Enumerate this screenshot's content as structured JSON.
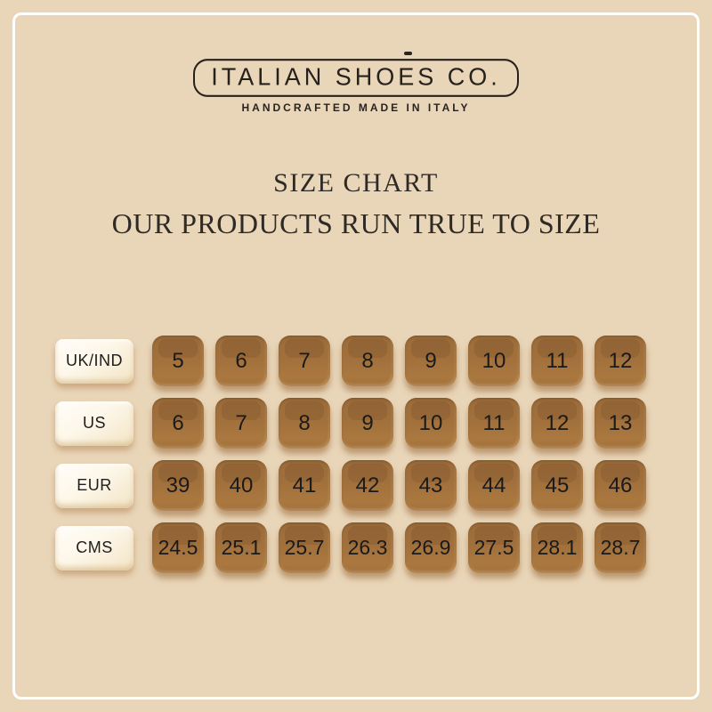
{
  "brand": {
    "name": "ITALIAN SHOES CO.",
    "tagline": "HANDCRAFTED MADE IN ITALY"
  },
  "heading": {
    "title": "SIZE CHART",
    "subtitle": "OUR PRODUCTS RUN TRUE TO SIZE"
  },
  "chart_data": {
    "type": "table",
    "title": "SIZE CHART",
    "row_headers": [
      "UK/IND",
      "US",
      "EUR",
      "CMS"
    ],
    "rows": [
      {
        "label": "UK/IND",
        "values": [
          "5",
          "6",
          "7",
          "8",
          "9",
          "10",
          "11",
          "12"
        ]
      },
      {
        "label": "US",
        "values": [
          "6",
          "7",
          "8",
          "9",
          "10",
          "11",
          "12",
          "13"
        ]
      },
      {
        "label": "EUR",
        "values": [
          "39",
          "40",
          "41",
          "42",
          "43",
          "44",
          "45",
          "46"
        ]
      },
      {
        "label": "CMS",
        "values": [
          "24.5",
          "25.1",
          "25.7",
          "26.3",
          "26.9",
          "27.5",
          "28.1",
          "28.7"
        ]
      }
    ]
  },
  "colors": {
    "background": "#e9d5b8",
    "frame": "#ffffff",
    "tile_brown": "#a5743e",
    "label_cream": "#f9efdb",
    "text_dark": "#1d1d1d"
  }
}
